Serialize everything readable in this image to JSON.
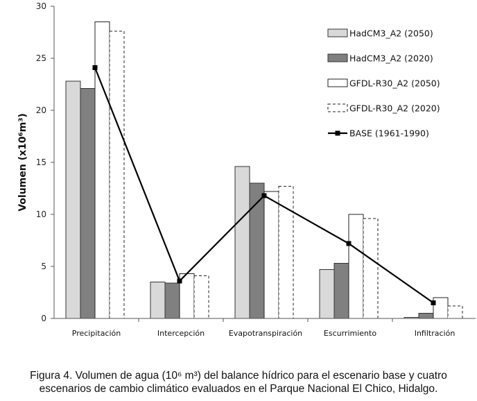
{
  "chart_data": {
    "type": "bar",
    "ylabel": "Volumen (x10⁶m³)",
    "xlabel": "",
    "ylim": [
      0,
      30
    ],
    "yticks": [
      0,
      5,
      10,
      15,
      20,
      25,
      30
    ],
    "categories": [
      "Precipitación",
      "Intercepción",
      "Evapotranspiración",
      "Escurrimiento",
      "Infiltración"
    ],
    "series": [
      {
        "name": "HadCM3_A2 (2050)",
        "type": "bar",
        "color": "#d9d9d9",
        "stroke": "#333333",
        "dashed": false,
        "values": [
          22.8,
          3.5,
          14.6,
          4.7,
          0.1
        ]
      },
      {
        "name": "HadCM3_A2 (2020)",
        "type": "bar",
        "color": "#808080",
        "stroke": "#333333",
        "dashed": false,
        "values": [
          22.1,
          3.4,
          13.0,
          5.3,
          0.5
        ]
      },
      {
        "name": "GFDL-R30_A2 (2050)",
        "type": "bar",
        "color": "#ffffff",
        "stroke": "#222222",
        "dashed": false,
        "values": [
          28.5,
          4.3,
          12.2,
          10.0,
          2.0
        ]
      },
      {
        "name": "GFDL-R30_A2 (2020)",
        "type": "bar",
        "color": "#ffffff",
        "stroke": "#222222",
        "dashed": true,
        "values": [
          27.6,
          4.1,
          12.7,
          9.6,
          1.2
        ]
      },
      {
        "name": "BASE (1961-1990)",
        "type": "line",
        "color": "#000000",
        "values": [
          24.1,
          3.6,
          11.8,
          7.2,
          1.5
        ]
      }
    ],
    "legend_position": "top-right",
    "grid": false
  },
  "caption": {
    "line1": "Figura 4. Volumen de agua (10⁶ m³) del balance hídrico para el escenario base y cuatro",
    "line2": "escenarios de cambio climático evaluados en el Parque Nacional El Chico, Hidalgo."
  }
}
